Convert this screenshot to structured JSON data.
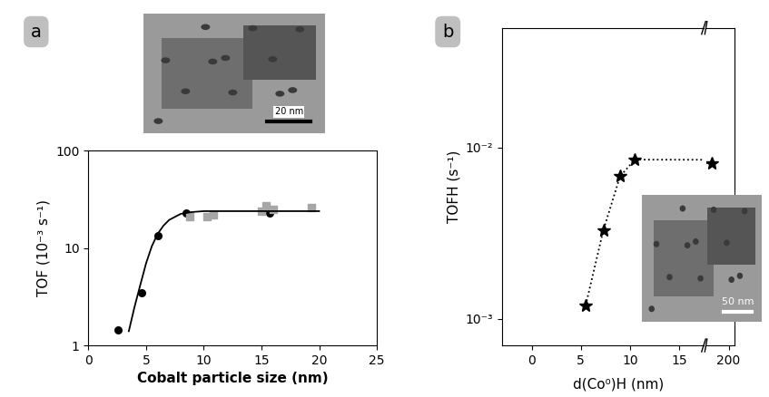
{
  "panel_labels": [
    "a",
    "b"
  ],
  "image_scale_bars": [
    "20 nm",
    "50 nm"
  ],
  "chart_data": [
    {
      "type": "scatter",
      "xlabel": "Cobalt particle size (nm)",
      "ylabel": "TOF (10⁻³ s⁻¹)",
      "log": "y",
      "xlim": [
        0,
        25
      ],
      "xticks": [
        0,
        5,
        10,
        15,
        20,
        25
      ],
      "ylim": [
        1,
        100
      ],
      "yticks": [
        1,
        10,
        100
      ],
      "series": [
        {
          "type": "scatter",
          "marker": "circle",
          "color": "#000000",
          "x": [
            2.6,
            4.6,
            6.0,
            8.5,
            15.7
          ],
          "values": [
            1.45,
            3.5,
            13.5,
            23,
            23
          ]
        },
        {
          "type": "scatter",
          "marker": "square",
          "color": "#a6a6a6",
          "x": [
            8.8,
            10.3,
            10.8,
            15.0,
            15.4,
            16.0,
            19.3
          ],
          "values": [
            21,
            21,
            22,
            24,
            27,
            25,
            26
          ]
        },
        {
          "type": "line",
          "line_style": "solid",
          "color": "#000000",
          "x": [
            3.5,
            4.0,
            4.5,
            5.0,
            5.5,
            6.0,
            6.5,
            7.0,
            8.0,
            9.0,
            10.0,
            12.0,
            15.0,
            20.0
          ],
          "values": [
            1.4,
            2.5,
            4.2,
            7.0,
            10.5,
            14,
            17,
            19.5,
            22.5,
            23.5,
            24,
            24,
            24,
            24
          ]
        }
      ]
    },
    {
      "type": "line",
      "xlabel": "d(Co⁰)H (nm)",
      "ylabel": "TOFH (s⁻¹)",
      "log": "y",
      "xlim": [
        [
          -3,
          17.5
        ],
        [
          180,
          205
        ]
      ],
      "xticks": [
        [
          0,
          5,
          10,
          15
        ],
        [
          200
        ]
      ],
      "ylim": [
        0.0007,
        0.05
      ],
      "yticks": [
        {
          "value": 0.001,
          "label": "10⁻³"
        },
        {
          "value": 0.01,
          "label": "10⁻²"
        }
      ],
      "series": [
        {
          "type": "line",
          "marker": "star",
          "line_style": "dotted",
          "color": "#000000",
          "x": [
            5.5,
            7.3,
            9.0,
            10.5,
            185
          ],
          "values": [
            0.0012,
            0.0033,
            0.0068,
            0.0085,
            0.0081
          ]
        }
      ]
    }
  ]
}
